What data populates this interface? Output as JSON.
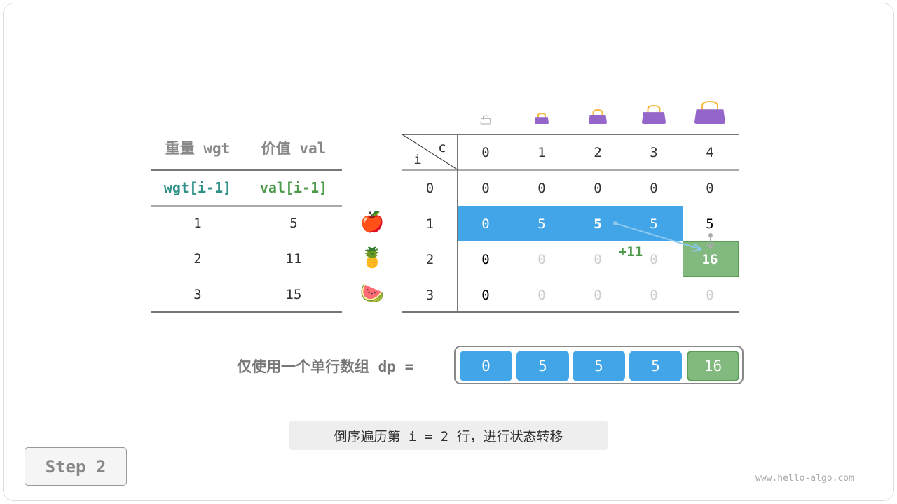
{
  "weights_table": {
    "headers": [
      "重量 wgt",
      "价值 val"
    ],
    "subheaders": [
      "wgt[i-1]",
      "val[i-1]"
    ],
    "rows": [
      {
        "wgt": "1",
        "val": "5",
        "fruit": "🍎"
      },
      {
        "wgt": "2",
        "val": "11",
        "fruit": "🍍"
      },
      {
        "wgt": "3",
        "val": "15",
        "fruit": "🍉"
      }
    ]
  },
  "dp_table": {
    "corner_c": "c",
    "corner_i": "i",
    "capacities": [
      "0",
      "1",
      "2",
      "3",
      "4"
    ],
    "row_labels": [
      "0",
      "1",
      "2",
      "3"
    ],
    "cells": [
      [
        {
          "v": "0",
          "s": "normal"
        },
        {
          "v": "0",
          "s": "normal"
        },
        {
          "v": "0",
          "s": "normal"
        },
        {
          "v": "0",
          "s": "normal"
        },
        {
          "v": "0",
          "s": "normal"
        }
      ],
      [
        {
          "v": "0",
          "s": "white"
        },
        {
          "v": "5",
          "s": "white"
        },
        {
          "v": "5",
          "s": "bold-white"
        },
        {
          "v": "5",
          "s": "white"
        },
        {
          "v": "5",
          "s": "black"
        }
      ],
      [
        {
          "v": "0",
          "s": "black"
        },
        {
          "v": "0",
          "s": "faded"
        },
        {
          "v": "0",
          "s": "faded"
        },
        {
          "v": "0",
          "s": "faded"
        },
        {
          "v": "16",
          "s": "result"
        }
      ],
      [
        {
          "v": "0",
          "s": "black"
        },
        {
          "v": "0",
          "s": "faded"
        },
        {
          "v": "0",
          "s": "faded"
        },
        {
          "v": "0",
          "s": "faded"
        },
        {
          "v": "0",
          "s": "faded"
        }
      ]
    ],
    "add_label": "+11",
    "highlight_color": "#42a5e8",
    "result_color": "#82b97f",
    "bag_icon": "handbag-icon"
  },
  "dp_array": {
    "label": "仅使用一个单行数组 dp =",
    "values": [
      "0",
      "5",
      "5",
      "5",
      "16"
    ]
  },
  "caption": "倒序遍历第 i = 2 行，进行状态转移",
  "step_label": "Step 2",
  "watermark": "www.hello-algo.com"
}
